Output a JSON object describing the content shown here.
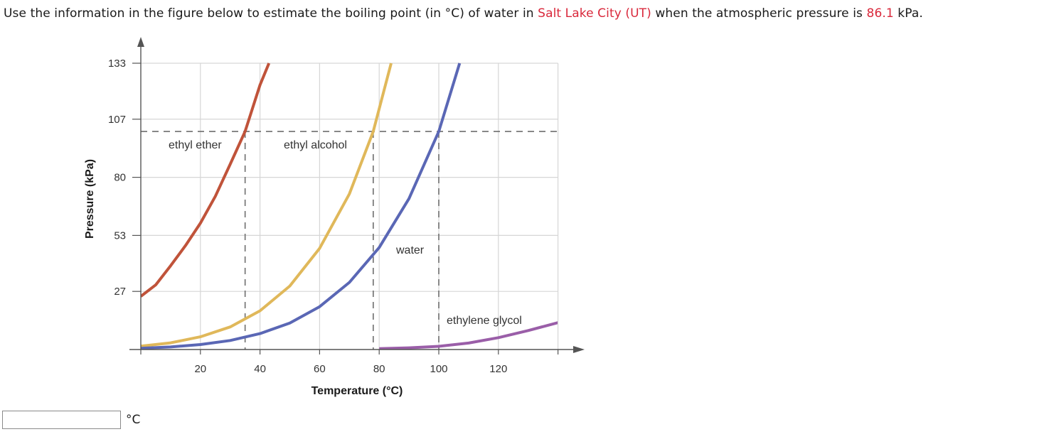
{
  "question": {
    "part1": "Use the information in the figure below to estimate the boiling point (in °C) of water in ",
    "city": "Salt Lake City (UT)",
    "part2": " when the atmospheric pressure is ",
    "pressure": "86.1",
    "part3": " kPa."
  },
  "answer": {
    "value": "",
    "placeholder": "",
    "unit": "°C"
  },
  "colors": {
    "highlight": "#d9283b",
    "ethyl_ether": "#c0533a",
    "ethyl_alcohol": "#e0b85a",
    "water": "#5a67b5",
    "ethylene_glycol": "#9a5ea8"
  },
  "chart_data": {
    "type": "line",
    "xlabel": "Temperature (°C)",
    "ylabel": "Pressure (kPa)",
    "xticks": [
      20,
      40,
      60,
      80,
      100,
      120
    ],
    "yticks": [
      27,
      53,
      80,
      107,
      133
    ],
    "xlim": [
      0,
      140
    ],
    "ylim": [
      0,
      133
    ],
    "grid": true,
    "reference_pressure": 101.3,
    "reference_temps": [
      35,
      78,
      100
    ],
    "series": [
      {
        "name": "ethyl ether",
        "color": "#c0533a",
        "x": [
          0,
          5,
          10,
          15,
          20,
          25,
          30,
          35,
          40,
          43
        ],
        "y": [
          24.7,
          30.0,
          38.9,
          48.3,
          58.7,
          71.2,
          86.1,
          101.3,
          122.9,
          133
        ]
      },
      {
        "name": "ethyl alcohol",
        "color": "#e0b85a",
        "x": [
          0,
          10,
          20,
          30,
          40,
          50,
          60,
          70,
          78,
          84
        ],
        "y": [
          1.6,
          3.1,
          5.9,
          10.5,
          18.0,
          29.5,
          47.0,
          72.3,
          101.3,
          133
        ]
      },
      {
        "name": "water",
        "color": "#5a67b5",
        "x": [
          0,
          10,
          20,
          30,
          40,
          50,
          60,
          70,
          80,
          90,
          100,
          107
        ],
        "y": [
          0.6,
          1.2,
          2.3,
          4.2,
          7.4,
          12.3,
          19.9,
          31.2,
          47.4,
          70.1,
          101.3,
          133
        ]
      },
      {
        "name": "ethylene glycol",
        "color": "#9a5ea8",
        "x": [
          80,
          90,
          100,
          110,
          120,
          130,
          140
        ],
        "y": [
          0.4,
          0.8,
          1.5,
          3.0,
          5.5,
          8.8,
          12.5
        ]
      }
    ]
  }
}
